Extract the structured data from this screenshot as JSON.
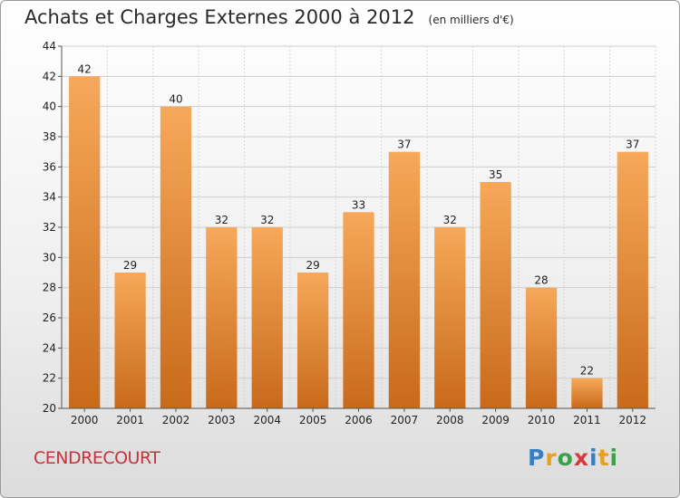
{
  "header": {
    "title": "Achats et Charges Externes 2000 à 2012",
    "subtitle": "(en milliers d'€)"
  },
  "footer": {
    "place": "CENDRECOURT",
    "logo_letters": [
      {
        "ch": "P",
        "color": "#3a7fc4"
      },
      {
        "ch": "r",
        "color": "#e8a020"
      },
      {
        "ch": "o",
        "color": "#3aa04a"
      },
      {
        "ch": "x",
        "color": "#d83a3a"
      },
      {
        "ch": "i",
        "color": "#3a7fc4"
      },
      {
        "ch": "t",
        "color": "#e8a020"
      },
      {
        "ch": "i",
        "color": "#3aa04a"
      }
    ]
  },
  "chart_data": {
    "type": "bar",
    "title": "Achats et Charges Externes 2000 à 2012",
    "subtitle": "(en milliers d'€)",
    "categories": [
      "2000",
      "2001",
      "2002",
      "2003",
      "2004",
      "2005",
      "2006",
      "2007",
      "2008",
      "2009",
      "2010",
      "2011",
      "2012"
    ],
    "values": [
      42,
      29,
      40,
      32,
      32,
      29,
      33,
      37,
      32,
      35,
      28,
      22,
      37
    ],
    "ylim": [
      20,
      44
    ],
    "yticks": [
      20,
      22,
      24,
      26,
      28,
      30,
      32,
      34,
      36,
      38,
      40,
      42,
      44
    ],
    "grid": true,
    "bar_color_top": "#f7a85a",
    "bar_color_bottom": "#c86a1a"
  }
}
